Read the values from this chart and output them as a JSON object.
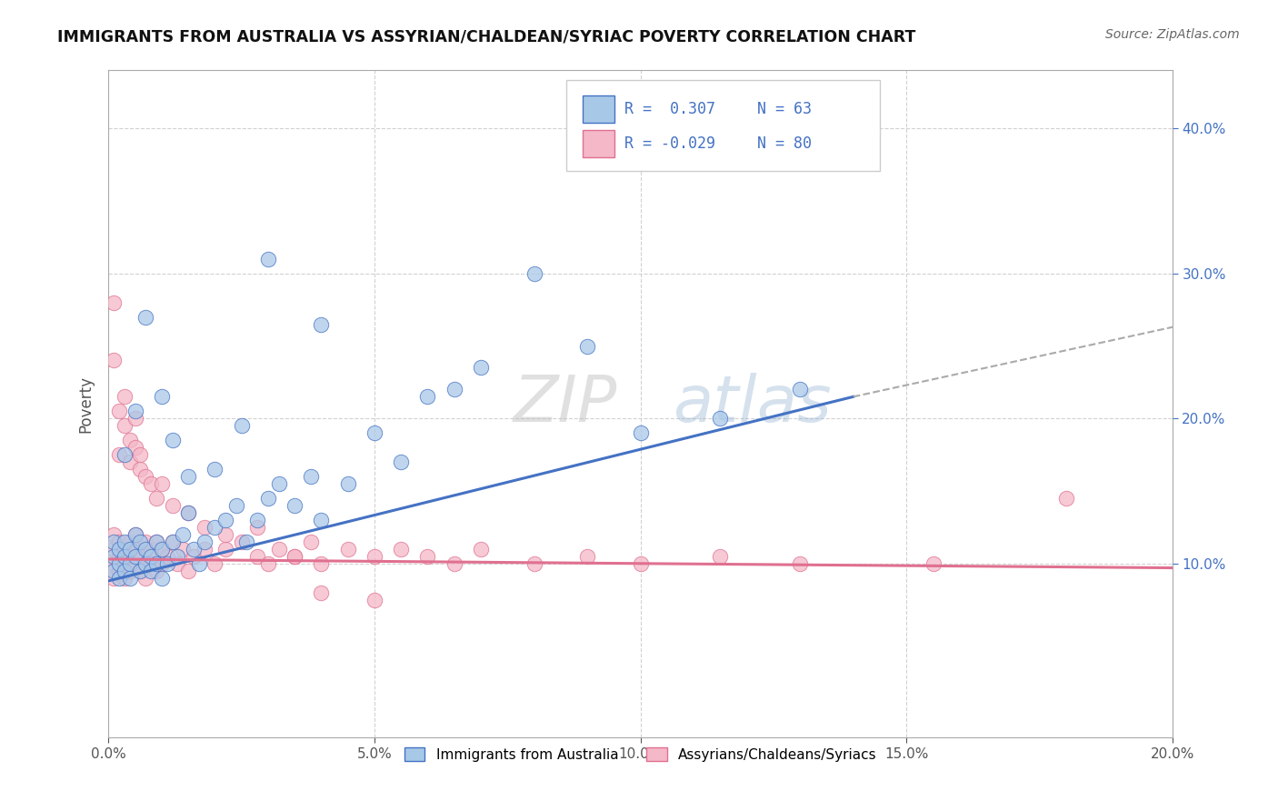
{
  "title": "IMMIGRANTS FROM AUSTRALIA VS ASSYRIAN/CHALDEAN/SYRIAC POVERTY CORRELATION CHART",
  "source": "Source: ZipAtlas.com",
  "ylabel": "Poverty",
  "xlim": [
    0.0,
    0.2
  ],
  "ylim": [
    -0.02,
    0.44
  ],
  "xtick_vals": [
    0.0,
    0.05,
    0.1,
    0.15,
    0.2
  ],
  "ytick_vals": [
    0.1,
    0.2,
    0.3,
    0.4
  ],
  "color_blue": "#A8C8E8",
  "color_pink": "#F4B8C8",
  "color_blue_line": "#4472C4",
  "color_pink_line": "#E07090",
  "color_dashed": "#AAAAAA",
  "watermark": "ZIPatlas",
  "background_color": "#FFFFFF",
  "legend_label_blue": "Immigrants from Australia",
  "legend_label_pink": "Assyrians/Chaldeans/Syriacs",
  "legend_R1": "R =  0.307",
  "legend_N1": "N = 63",
  "legend_R2": "R = -0.029",
  "legend_N2": "N = 80",
  "blue_line_x0": 0.0,
  "blue_line_y0": 0.088,
  "blue_line_x1": 0.14,
  "blue_line_y1": 0.215,
  "dashed_line_x0": 0.14,
  "dashed_line_y0": 0.215,
  "dashed_line_x1": 0.2,
  "dashed_line_y1": 0.263,
  "pink_line_x0": 0.0,
  "pink_line_y0": 0.103,
  "pink_line_x1": 0.2,
  "pink_line_y1": 0.097,
  "blue_scatter_x": [
    0.001,
    0.001,
    0.001,
    0.002,
    0.002,
    0.002,
    0.003,
    0.003,
    0.003,
    0.004,
    0.004,
    0.004,
    0.005,
    0.005,
    0.006,
    0.006,
    0.007,
    0.007,
    0.008,
    0.008,
    0.009,
    0.009,
    0.01,
    0.01,
    0.011,
    0.012,
    0.013,
    0.014,
    0.015,
    0.016,
    0.017,
    0.018,
    0.02,
    0.022,
    0.024,
    0.026,
    0.028,
    0.03,
    0.032,
    0.035,
    0.038,
    0.04,
    0.045,
    0.05,
    0.055,
    0.06,
    0.065,
    0.07,
    0.08,
    0.09,
    0.1,
    0.115,
    0.13,
    0.003,
    0.005,
    0.007,
    0.01,
    0.012,
    0.015,
    0.02,
    0.025,
    0.03,
    0.04
  ],
  "blue_scatter_y": [
    0.105,
    0.095,
    0.115,
    0.11,
    0.1,
    0.09,
    0.105,
    0.115,
    0.095,
    0.11,
    0.1,
    0.09,
    0.105,
    0.12,
    0.095,
    0.115,
    0.1,
    0.11,
    0.105,
    0.095,
    0.115,
    0.1,
    0.11,
    0.09,
    0.1,
    0.115,
    0.105,
    0.12,
    0.135,
    0.11,
    0.1,
    0.115,
    0.125,
    0.13,
    0.14,
    0.115,
    0.13,
    0.145,
    0.155,
    0.14,
    0.16,
    0.13,
    0.155,
    0.19,
    0.17,
    0.215,
    0.22,
    0.235,
    0.3,
    0.25,
    0.19,
    0.2,
    0.22,
    0.175,
    0.205,
    0.27,
    0.215,
    0.185,
    0.16,
    0.165,
    0.195,
    0.31,
    0.265
  ],
  "pink_scatter_x": [
    0.001,
    0.001,
    0.001,
    0.001,
    0.002,
    0.002,
    0.002,
    0.003,
    0.003,
    0.003,
    0.004,
    0.004,
    0.004,
    0.005,
    0.005,
    0.005,
    0.006,
    0.006,
    0.007,
    0.007,
    0.007,
    0.008,
    0.008,
    0.009,
    0.009,
    0.01,
    0.01,
    0.011,
    0.012,
    0.013,
    0.014,
    0.015,
    0.016,
    0.018,
    0.02,
    0.022,
    0.025,
    0.028,
    0.03,
    0.032,
    0.035,
    0.038,
    0.04,
    0.045,
    0.05,
    0.055,
    0.06,
    0.065,
    0.07,
    0.08,
    0.09,
    0.1,
    0.115,
    0.13,
    0.155,
    0.18,
    0.001,
    0.001,
    0.002,
    0.002,
    0.003,
    0.003,
    0.004,
    0.004,
    0.005,
    0.005,
    0.006,
    0.006,
    0.007,
    0.008,
    0.009,
    0.01,
    0.012,
    0.015,
    0.018,
    0.022,
    0.028,
    0.035,
    0.04,
    0.05
  ],
  "pink_scatter_y": [
    0.11,
    0.1,
    0.09,
    0.12,
    0.105,
    0.095,
    0.115,
    0.1,
    0.11,
    0.09,
    0.105,
    0.115,
    0.095,
    0.1,
    0.11,
    0.12,
    0.105,
    0.095,
    0.1,
    0.115,
    0.09,
    0.11,
    0.1,
    0.095,
    0.115,
    0.1,
    0.11,
    0.105,
    0.115,
    0.1,
    0.11,
    0.095,
    0.105,
    0.11,
    0.1,
    0.11,
    0.115,
    0.105,
    0.1,
    0.11,
    0.105,
    0.115,
    0.1,
    0.11,
    0.105,
    0.11,
    0.105,
    0.1,
    0.11,
    0.1,
    0.105,
    0.1,
    0.105,
    0.1,
    0.1,
    0.145,
    0.28,
    0.24,
    0.205,
    0.175,
    0.195,
    0.215,
    0.185,
    0.17,
    0.2,
    0.18,
    0.165,
    0.175,
    0.16,
    0.155,
    0.145,
    0.155,
    0.14,
    0.135,
    0.125,
    0.12,
    0.125,
    0.105,
    0.08,
    0.075
  ]
}
